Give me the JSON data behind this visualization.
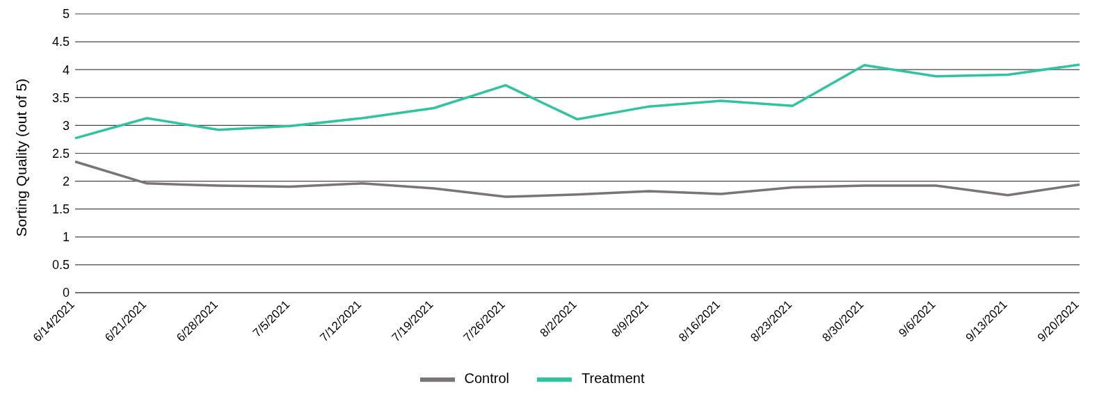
{
  "chart_data": {
    "type": "line",
    "ylabel": "Sorting Quality (out of 5)",
    "categories": [
      "6/14/2021",
      "6/21/2021",
      "6/28/2021",
      "7/5/2021",
      "7/12/2021",
      "7/19/2021",
      "7/26/2021",
      "8/2/2021",
      "8/9/2021",
      "8/16/2021",
      "8/23/2021",
      "8/30/2021",
      "9/6/2021",
      "9/13/2021",
      "9/20/2021"
    ],
    "series": [
      {
        "name": "Control",
        "color": "#7a7474",
        "values": [
          2.35,
          1.96,
          1.92,
          1.9,
          1.96,
          1.87,
          1.72,
          1.76,
          1.82,
          1.77,
          1.89,
          1.92,
          1.92,
          1.75,
          1.94
        ]
      },
      {
        "name": "Treatment",
        "color": "#2ec4a0",
        "values": [
          2.77,
          3.13,
          2.92,
          2.99,
          3.13,
          3.31,
          3.72,
          3.11,
          3.34,
          3.44,
          3.35,
          4.08,
          3.88,
          3.91,
          4.09
        ]
      }
    ],
    "ylim": [
      0,
      5
    ],
    "yticks": [
      0,
      0.5,
      1,
      1.5,
      2,
      2.5,
      3,
      3.5,
      4,
      4.5,
      5
    ],
    "grid": "y",
    "legend": "bottom",
    "marker": "none",
    "line_style": "solid"
  }
}
